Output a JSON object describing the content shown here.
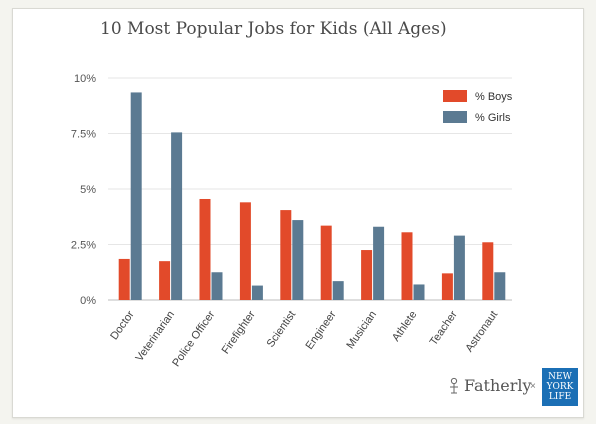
{
  "chart_data": {
    "type": "bar",
    "title": "10 Most Popular Jobs for Kids (All Ages)",
    "categories": [
      "Doctor",
      "Veterinarian",
      "Police Officer",
      "Firefighter",
      "Scientist",
      "Engineer",
      "Musician",
      "Athlete",
      "Teacher",
      "Astronaut"
    ],
    "series": [
      {
        "name": "% Boys",
        "color": "#e24a2a",
        "values": [
          1.85,
          1.75,
          4.55,
          4.4,
          4.05,
          3.35,
          2.25,
          3.05,
          1.2,
          2.6
        ]
      },
      {
        "name": "% Girls",
        "color": "#5b7a92",
        "values": [
          9.35,
          7.55,
          1.25,
          0.65,
          3.6,
          0.85,
          3.3,
          0.7,
          2.9,
          1.25
        ]
      }
    ],
    "ylim": [
      0,
      10
    ],
    "yticks": [
      0,
      2.5,
      5,
      7.5,
      10
    ],
    "ytick_labels": [
      "0%",
      "2.5%",
      "5%",
      "7.5%",
      "10%"
    ],
    "grid": true,
    "legend": "top-right"
  },
  "branding": {
    "fatherly_icon": "fatherly-seal-icon",
    "fatherly": "Fatherly",
    "separator": "×",
    "nyl_lines": [
      "NEW",
      "YORK",
      "LIFE"
    ]
  }
}
